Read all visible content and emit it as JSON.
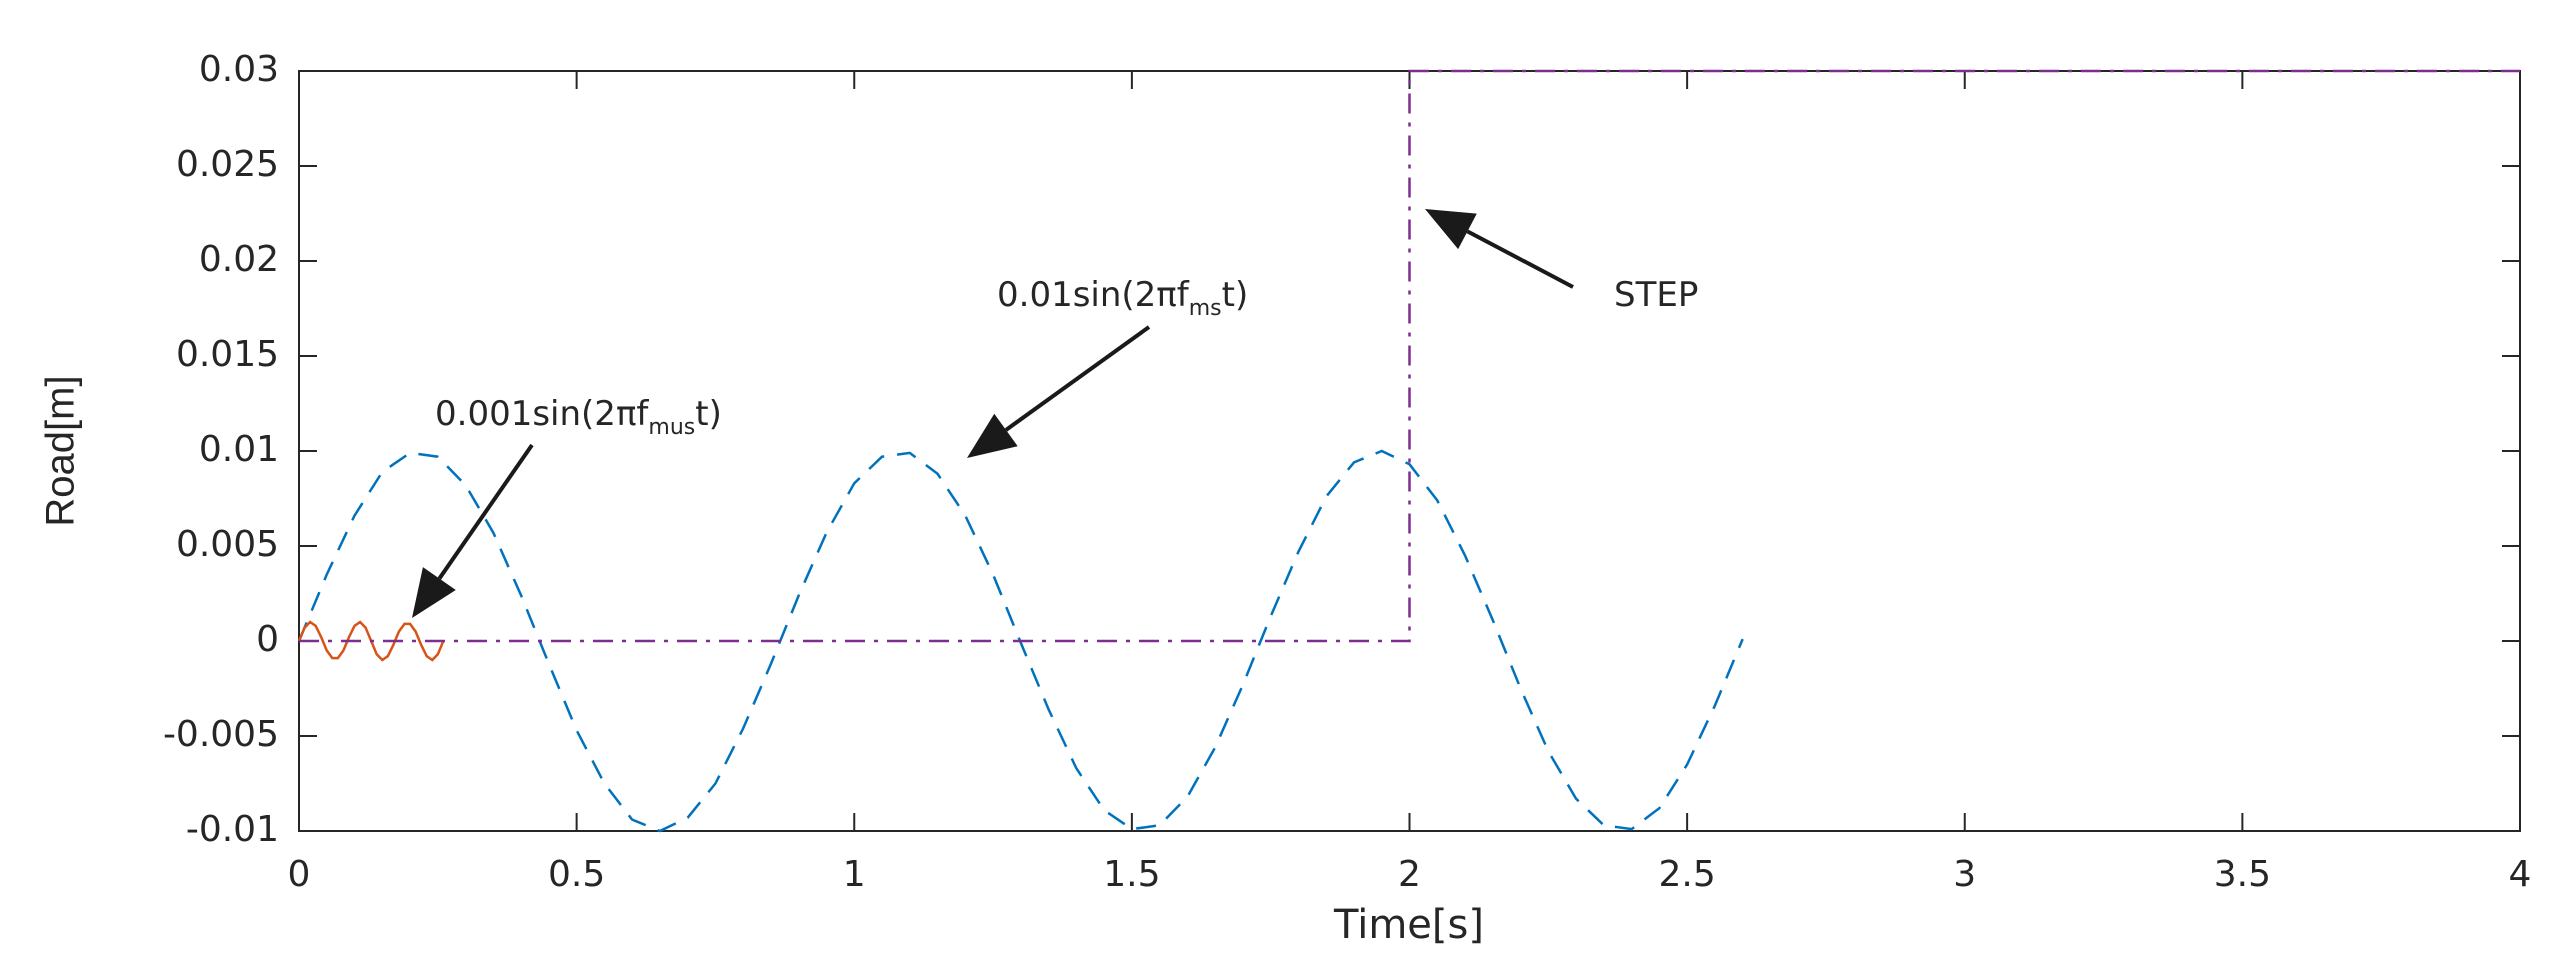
{
  "chart_data": {
    "type": "line",
    "xlabel": "Time[s]",
    "ylabel": "Road[m]",
    "xlim": [
      0,
      4
    ],
    "xticks": [
      0,
      0.5,
      1,
      1.5,
      2,
      2.5,
      3,
      3.5,
      4
    ],
    "ylim": [
      -0.01,
      0.03
    ],
    "yticks": [
      -0.01,
      -0.005,
      0,
      0.005,
      0.01,
      0.015,
      0.02,
      0.025,
      0.03
    ],
    "grid": false,
    "series": [
      {
        "color": "#0072bd",
        "linestyle": "dashed",
        "x": [
          0,
          0.05,
          0.1,
          0.15,
          0.2,
          0.25,
          0.3,
          0.35,
          0.4,
          0.45,
          0.5,
          0.55,
          0.6,
          0.65,
          0.7,
          0.75,
          0.8,
          0.85,
          0.9,
          0.95,
          1,
          1.05,
          1.1,
          1.15,
          1.2,
          1.25,
          1.3,
          1.35,
          1.4,
          1.45,
          1.5,
          1.55,
          1.6,
          1.65,
          1.7,
          1.75,
          1.8,
          1.85,
          1.9,
          1.95,
          2,
          2.05,
          2.1,
          2.15,
          2.2,
          2.25,
          2.3,
          2.35,
          2.4,
          2.45,
          2.5,
          2.55,
          2.6
        ],
        "values": [
          0,
          0.0035,
          0.0066,
          0.0089,
          0.0099,
          0.0097,
          0.0082,
          0.0057,
          0.0024,
          -0.0012,
          -0.0047,
          -0.0075,
          -0.0094,
          -0.01,
          -0.0093,
          -0.0075,
          -0.0046,
          -0.0012,
          0.0024,
          0.0057,
          0.0083,
          0.0097,
          0.0099,
          0.0088,
          0.0066,
          0.0035,
          -0.0001,
          -0.0036,
          -0.0067,
          -0.0089,
          -0.0099,
          -0.0097,
          -0.0082,
          -0.0056,
          -0.0023,
          0.0013,
          0.0047,
          0.0076,
          0.0094,
          0.01,
          0.0093,
          0.0074,
          0.0045,
          0.0011,
          -0.0025,
          -0.0058,
          -0.0083,
          -0.0097,
          -0.0099,
          -0.0088,
          -0.0065,
          -0.0034,
          0.0001
        ]
      },
      {
        "color": "#d95319",
        "linestyle": "solid",
        "x": [
          0,
          0.01,
          0.02,
          0.03,
          0.04,
          0.05,
          0.06,
          0.07,
          0.08,
          0.09,
          0.1,
          0.11,
          0.12,
          0.13,
          0.14,
          0.15,
          0.16,
          0.17,
          0.18,
          0.19,
          0.2,
          0.21,
          0.22,
          0.23,
          0.24,
          0.25,
          0.26
        ],
        "values": [
          0,
          0.0007,
          0.001,
          0.0008,
          0.0002,
          -0.0005,
          -0.0009,
          -0.0009,
          -0.0005,
          0.0002,
          0.0008,
          0.001,
          0.0007,
          0,
          -0.0007,
          -0.001,
          -0.0008,
          -0.0002,
          0.0005,
          0.0009,
          0.0009,
          0.0005,
          -0.0002,
          -0.0008,
          -0.001,
          -0.0007,
          0
        ]
      },
      {
        "color": "#7e2f8e",
        "linestyle": "dashdot",
        "x": [
          0,
          2,
          2,
          4
        ],
        "values": [
          0,
          0,
          0.03,
          0.03
        ]
      }
    ],
    "annotations": [
      {
        "text": "0.001sin(2πf",
        "sub": "mus",
        "after": "t)"
      },
      {
        "text": "0.01sin(2πf",
        "sub": "ms",
        "after": "t)"
      },
      {
        "text": "STEP"
      }
    ]
  }
}
